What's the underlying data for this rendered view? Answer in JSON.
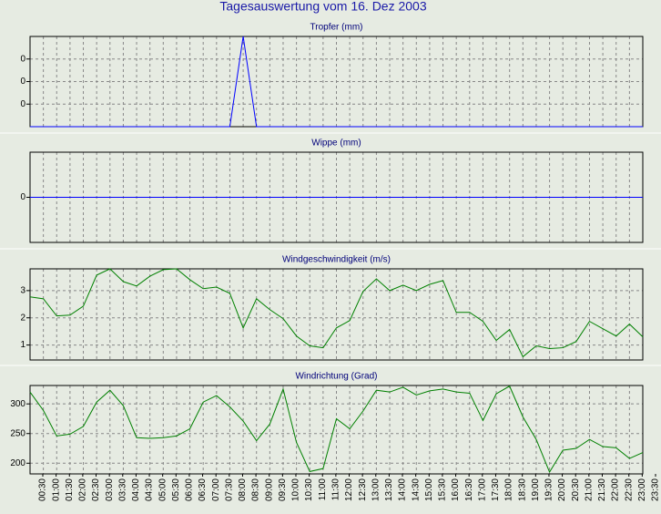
{
  "title": "Tagesauswertung vom 16. Dez 2003",
  "chart_data": [
    {
      "type": "line",
      "title": "Tropfer (mm)",
      "color": "#0000ff",
      "grid": true,
      "ylim": [
        0,
        0.4
      ],
      "yticks": [
        {
          "value": 0.1,
          "label": "0"
        },
        {
          "value": 0.2,
          "label": "0"
        },
        {
          "value": 0.3,
          "label": "0"
        }
      ],
      "values": [
        0,
        0,
        0,
        0,
        0,
        0,
        0,
        0,
        0,
        0,
        0,
        0,
        0,
        0,
        0,
        0,
        0.4,
        0,
        0,
        0,
        0,
        0,
        0,
        0,
        0,
        0,
        0,
        0,
        0,
        0,
        0,
        0,
        0,
        0,
        0,
        0,
        0,
        0,
        0,
        0,
        0,
        0,
        0,
        0,
        0,
        0,
        0
      ]
    },
    {
      "type": "line",
      "title": "Wippe (mm)",
      "color": "#0000ff",
      "grid": true,
      "ylim": [
        -1,
        1
      ],
      "yticks": [
        0
      ],
      "values": [
        0,
        0,
        0,
        0,
        0,
        0,
        0,
        0,
        0,
        0,
        0,
        0,
        0,
        0,
        0,
        0,
        0,
        0,
        0,
        0,
        0,
        0,
        0,
        0,
        0,
        0,
        0,
        0,
        0,
        0,
        0,
        0,
        0,
        0,
        0,
        0,
        0,
        0,
        0,
        0,
        0,
        0,
        0,
        0,
        0,
        0,
        0
      ]
    },
    {
      "type": "line",
      "title": "Windgeschwindigkeit (m/s)",
      "color": "#008000",
      "grid": true,
      "ylim": [
        0.45,
        3.8
      ],
      "yticks": [
        1,
        2,
        3
      ],
      "values": [
        2.77,
        2.7,
        2.07,
        2.1,
        2.43,
        3.57,
        3.8,
        3.33,
        3.17,
        3.53,
        3.77,
        3.8,
        3.4,
        3.07,
        3.13,
        2.9,
        1.63,
        2.7,
        2.3,
        1.97,
        1.33,
        0.97,
        0.9,
        1.63,
        1.9,
        2.97,
        3.43,
        3.0,
        3.2,
        3.0,
        3.23,
        3.37,
        2.2,
        2.2,
        1.87,
        1.17,
        1.57,
        0.57,
        0.97,
        0.87,
        0.9,
        1.13,
        1.87,
        1.6,
        1.33,
        1.77,
        1.3
      ]
    },
    {
      "type": "line",
      "title": "Windrichtung (Grad)",
      "color": "#008000",
      "grid": true,
      "ylim": [
        182,
        331
      ],
      "yticks": [
        200,
        250,
        300
      ],
      "categories": [
        "00:30",
        "01:00",
        "01:30",
        "02:00",
        "02:30",
        "03:00",
        "03:30",
        "04:00",
        "04:30",
        "05:00",
        "05:30",
        "06:00",
        "06:30",
        "07:00",
        "07:30",
        "08:00",
        "08:30",
        "09:00",
        "09:30",
        "10:00",
        "10:30",
        "11:00",
        "11:30",
        "12:00",
        "12:30",
        "13:00",
        "13:30",
        "14:00",
        "14:30",
        "15:00",
        "15:30",
        "16:00",
        "16:30",
        "17:00",
        "17:30",
        "18:00",
        "18:30",
        "19:00",
        "19:30",
        "20:00",
        "20:30",
        "21:00",
        "21:30",
        "22:00",
        "22:30",
        "23:00",
        "23:30"
      ],
      "values": [
        320,
        289,
        246,
        249,
        262,
        303,
        323,
        297,
        243,
        242,
        243,
        246,
        258,
        303,
        314,
        295,
        271,
        238,
        266,
        325,
        235,
        186,
        191,
        275,
        258,
        288,
        323,
        320,
        328,
        315,
        322,
        325,
        320,
        318,
        272,
        317,
        330,
        278,
        240,
        185,
        222,
        225,
        240,
        228,
        226,
        208,
        218
      ]
    }
  ]
}
